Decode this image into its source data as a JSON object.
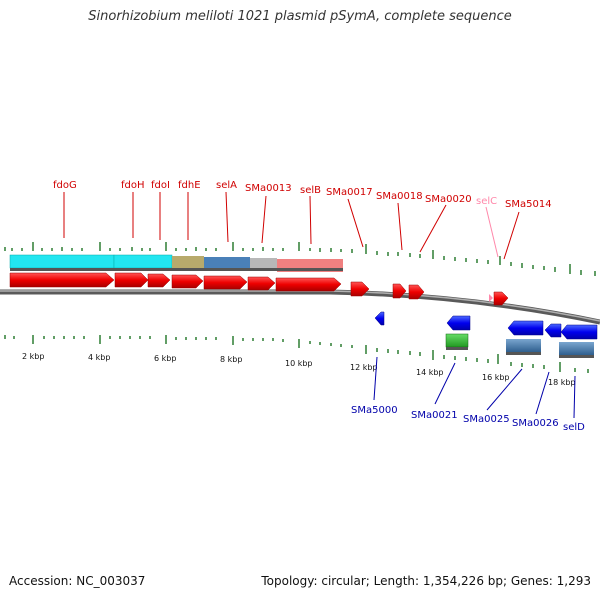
{
  "title": "Sinorhizobium meliloti 1021 plasmid pSymA, complete sequence",
  "accession": "Accession: NC_003037",
  "summary": "Topology: circular; Length: 1,354,226 bp; Genes: 1,293",
  "colors": {
    "forward_gene": "#ee0000",
    "reverse_gene": "#0000ee",
    "rna_gene": "#22aa22",
    "backbone": "#777777",
    "tick": "#2e7d32",
    "forward_label": "#d00000",
    "reverse_label": "#0000aa",
    "pseudo_label": "#ff88aa"
  },
  "scale_labels": [
    "2 kbp",
    "4 kbp",
    "6 kbp",
    "8 kbp",
    "10 kbp",
    "12 kbp",
    "14 kbp",
    "16 kbp",
    "18 kbp"
  ],
  "forward_labels": [
    "fdoG",
    "fdoH",
    "fdoI",
    "fdhE",
    "selA",
    "SMa0013",
    "selB",
    "SMa0017",
    "SMa0018",
    "SMa0020",
    "selC",
    "SMa5014"
  ],
  "reverse_labels": [
    "SMa5000",
    "SMa0021",
    "SMa0025",
    "SMa0026",
    "selD"
  ],
  "operon_bars": [
    {
      "color": "#22e6f0"
    },
    {
      "color": "#22e6f0"
    },
    {
      "color": "#b8aa6c"
    },
    {
      "color": "#4a80b8"
    },
    {
      "color": "#b8b8b8"
    },
    {
      "color": "#f08080"
    }
  ]
}
